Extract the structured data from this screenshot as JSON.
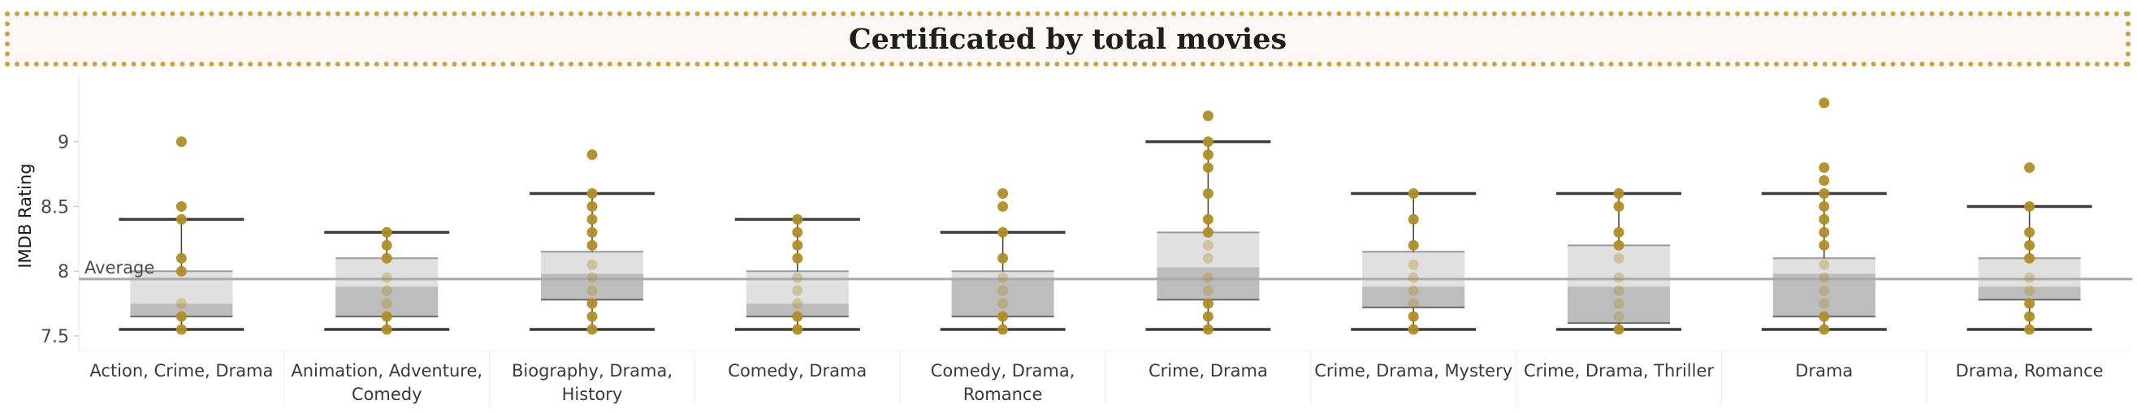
{
  "chart_data": {
    "type": "box",
    "title": "Certificated by total movies",
    "xlabel": "",
    "ylabel": "IMDB Rating",
    "ylim": [
      7.4,
      9.38
    ],
    "yticks": [
      "7.5",
      "8",
      "8.5",
      "9"
    ],
    "reference_line": {
      "label": "Average",
      "value": 7.94
    },
    "colors": {
      "dot": "#b08d26",
      "box_upper": "#e0e0e0",
      "box_lower": "#bdbdbd",
      "whisker": "#3c3c3c",
      "reference": "#a9a9a9",
      "title_border": "#c9a53a",
      "title_bg": "#fdf7f7"
    },
    "categories": [
      {
        "label": [
          "Action, Crime, Drama"
        ],
        "whisker_low": 7.55,
        "q1": 7.65,
        "median": 7.75,
        "q3": 8.0,
        "whisker_high": 8.4,
        "points": [
          7.55,
          7.65,
          7.75,
          8.0,
          8.1,
          8.4,
          8.5,
          9.0
        ]
      },
      {
        "label": [
          "Animation, Adventure,",
          "Comedy"
        ],
        "whisker_low": 7.55,
        "q1": 7.65,
        "median": 7.88,
        "q3": 8.1,
        "whisker_high": 8.3,
        "points": [
          7.55,
          7.65,
          7.75,
          7.85,
          7.95,
          8.1,
          8.2,
          8.3
        ]
      },
      {
        "label": [
          "Biography, Drama,",
          "History"
        ],
        "whisker_low": 7.55,
        "q1": 7.78,
        "median": 7.98,
        "q3": 8.15,
        "whisker_high": 8.6,
        "points": [
          7.55,
          7.65,
          7.75,
          7.85,
          7.95,
          8.05,
          8.2,
          8.3,
          8.4,
          8.5,
          8.6,
          8.9
        ]
      },
      {
        "label": [
          "Comedy, Drama"
        ],
        "whisker_low": 7.55,
        "q1": 7.65,
        "median": 7.75,
        "q3": 8.0,
        "whisker_high": 8.4,
        "points": [
          7.55,
          7.65,
          7.75,
          7.85,
          7.95,
          8.1,
          8.2,
          8.3,
          8.4
        ]
      },
      {
        "label": [
          "Comedy, Drama,",
          "Romance"
        ],
        "whisker_low": 7.55,
        "q1": 7.65,
        "median": 7.95,
        "q3": 8.0,
        "whisker_high": 8.3,
        "points": [
          7.55,
          7.65,
          7.75,
          7.85,
          7.95,
          8.1,
          8.3,
          8.5,
          8.6
        ]
      },
      {
        "label": [
          "Crime, Drama"
        ],
        "whisker_low": 7.55,
        "q1": 7.78,
        "median": 8.03,
        "q3": 8.3,
        "whisker_high": 9.0,
        "points": [
          7.55,
          7.65,
          7.75,
          7.85,
          7.95,
          8.1,
          8.2,
          8.3,
          8.4,
          8.6,
          8.8,
          8.9,
          9.0,
          9.2
        ]
      },
      {
        "label": [
          "Crime, Drama, Mystery"
        ],
        "whisker_low": 7.55,
        "q1": 7.72,
        "median": 7.88,
        "q3": 8.15,
        "whisker_high": 8.6,
        "points": [
          7.55,
          7.65,
          7.75,
          7.85,
          7.95,
          8.05,
          8.2,
          8.4,
          8.6
        ]
      },
      {
        "label": [
          "Crime, Drama, Thriller"
        ],
        "whisker_low": 7.55,
        "q1": 7.6,
        "median": 7.88,
        "q3": 8.2,
        "whisker_high": 8.6,
        "points": [
          7.55,
          7.65,
          7.75,
          7.85,
          7.95,
          8.1,
          8.2,
          8.3,
          8.5,
          8.6
        ]
      },
      {
        "label": [
          "Drama"
        ],
        "whisker_low": 7.55,
        "q1": 7.65,
        "median": 7.98,
        "q3": 8.1,
        "whisker_high": 8.6,
        "points": [
          7.55,
          7.65,
          7.75,
          7.85,
          7.95,
          8.05,
          8.2,
          8.3,
          8.4,
          8.5,
          8.6,
          8.7,
          8.8,
          9.3
        ]
      },
      {
        "label": [
          "Drama, Romance"
        ],
        "whisker_low": 7.55,
        "q1": 7.78,
        "median": 7.88,
        "q3": 8.1,
        "whisker_high": 8.5,
        "points": [
          7.55,
          7.65,
          7.75,
          7.85,
          7.95,
          8.1,
          8.2,
          8.3,
          8.5,
          8.8
        ]
      }
    ]
  }
}
